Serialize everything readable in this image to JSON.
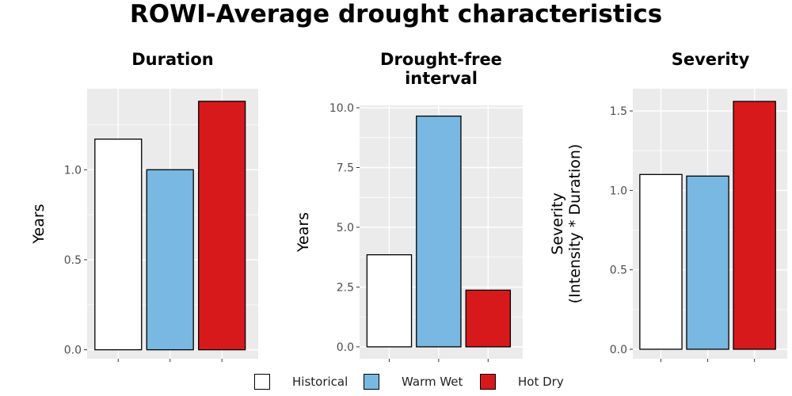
{
  "title": "ROWI-Average drought characteristics",
  "colors": {
    "panel_bg": "#ebebeb",
    "grid": "#ffffff",
    "axis_text": "#4d4d4d",
    "bar_outline": "#000000"
  },
  "legend": [
    {
      "label": "Historical",
      "color": "#ffffff"
    },
    {
      "label": "Warm Wet",
      "color": "#78b8e2"
    },
    {
      "label": "Hot Dry",
      "color": "#d7191c"
    }
  ],
  "chart_data": [
    {
      "type": "bar",
      "title": "Duration",
      "ylabel": "Years",
      "categories": [
        "Historical",
        "Warm Wet",
        "Hot Dry"
      ],
      "values": [
        1.17,
        1.0,
        1.38
      ],
      "yticks": [
        0.0,
        0.5,
        1.0
      ],
      "ytick_labels": [
        "0.0",
        "0.5",
        "1.0"
      ],
      "ylim": [
        -0.05,
        1.45
      ]
    },
    {
      "type": "bar",
      "title": "Drought-free\ninterval",
      "ylabel": "Years",
      "categories": [
        "Historical",
        "Warm Wet",
        "Hot Dry"
      ],
      "values": [
        3.85,
        9.65,
        2.37
      ],
      "yticks": [
        0.0,
        2.5,
        5.0,
        7.5,
        10.0
      ],
      "ytick_labels": [
        "0.0",
        "2.5",
        "5.0",
        "7.5",
        "10.0"
      ],
      "ylim": [
        -0.5,
        10.1
      ]
    },
    {
      "type": "bar",
      "title": "Severity",
      "ylabel": "Severity\n(Intensity * Duration)",
      "categories": [
        "Historical",
        "Warm Wet",
        "Hot Dry"
      ],
      "values": [
        1.1,
        1.09,
        1.56
      ],
      "yticks": [
        0.0,
        0.5,
        1.0,
        1.5
      ],
      "ytick_labels": [
        "0.0",
        "0.5",
        "1.0",
        "1.5"
      ],
      "ylim": [
        -0.06,
        1.64
      ]
    }
  ]
}
